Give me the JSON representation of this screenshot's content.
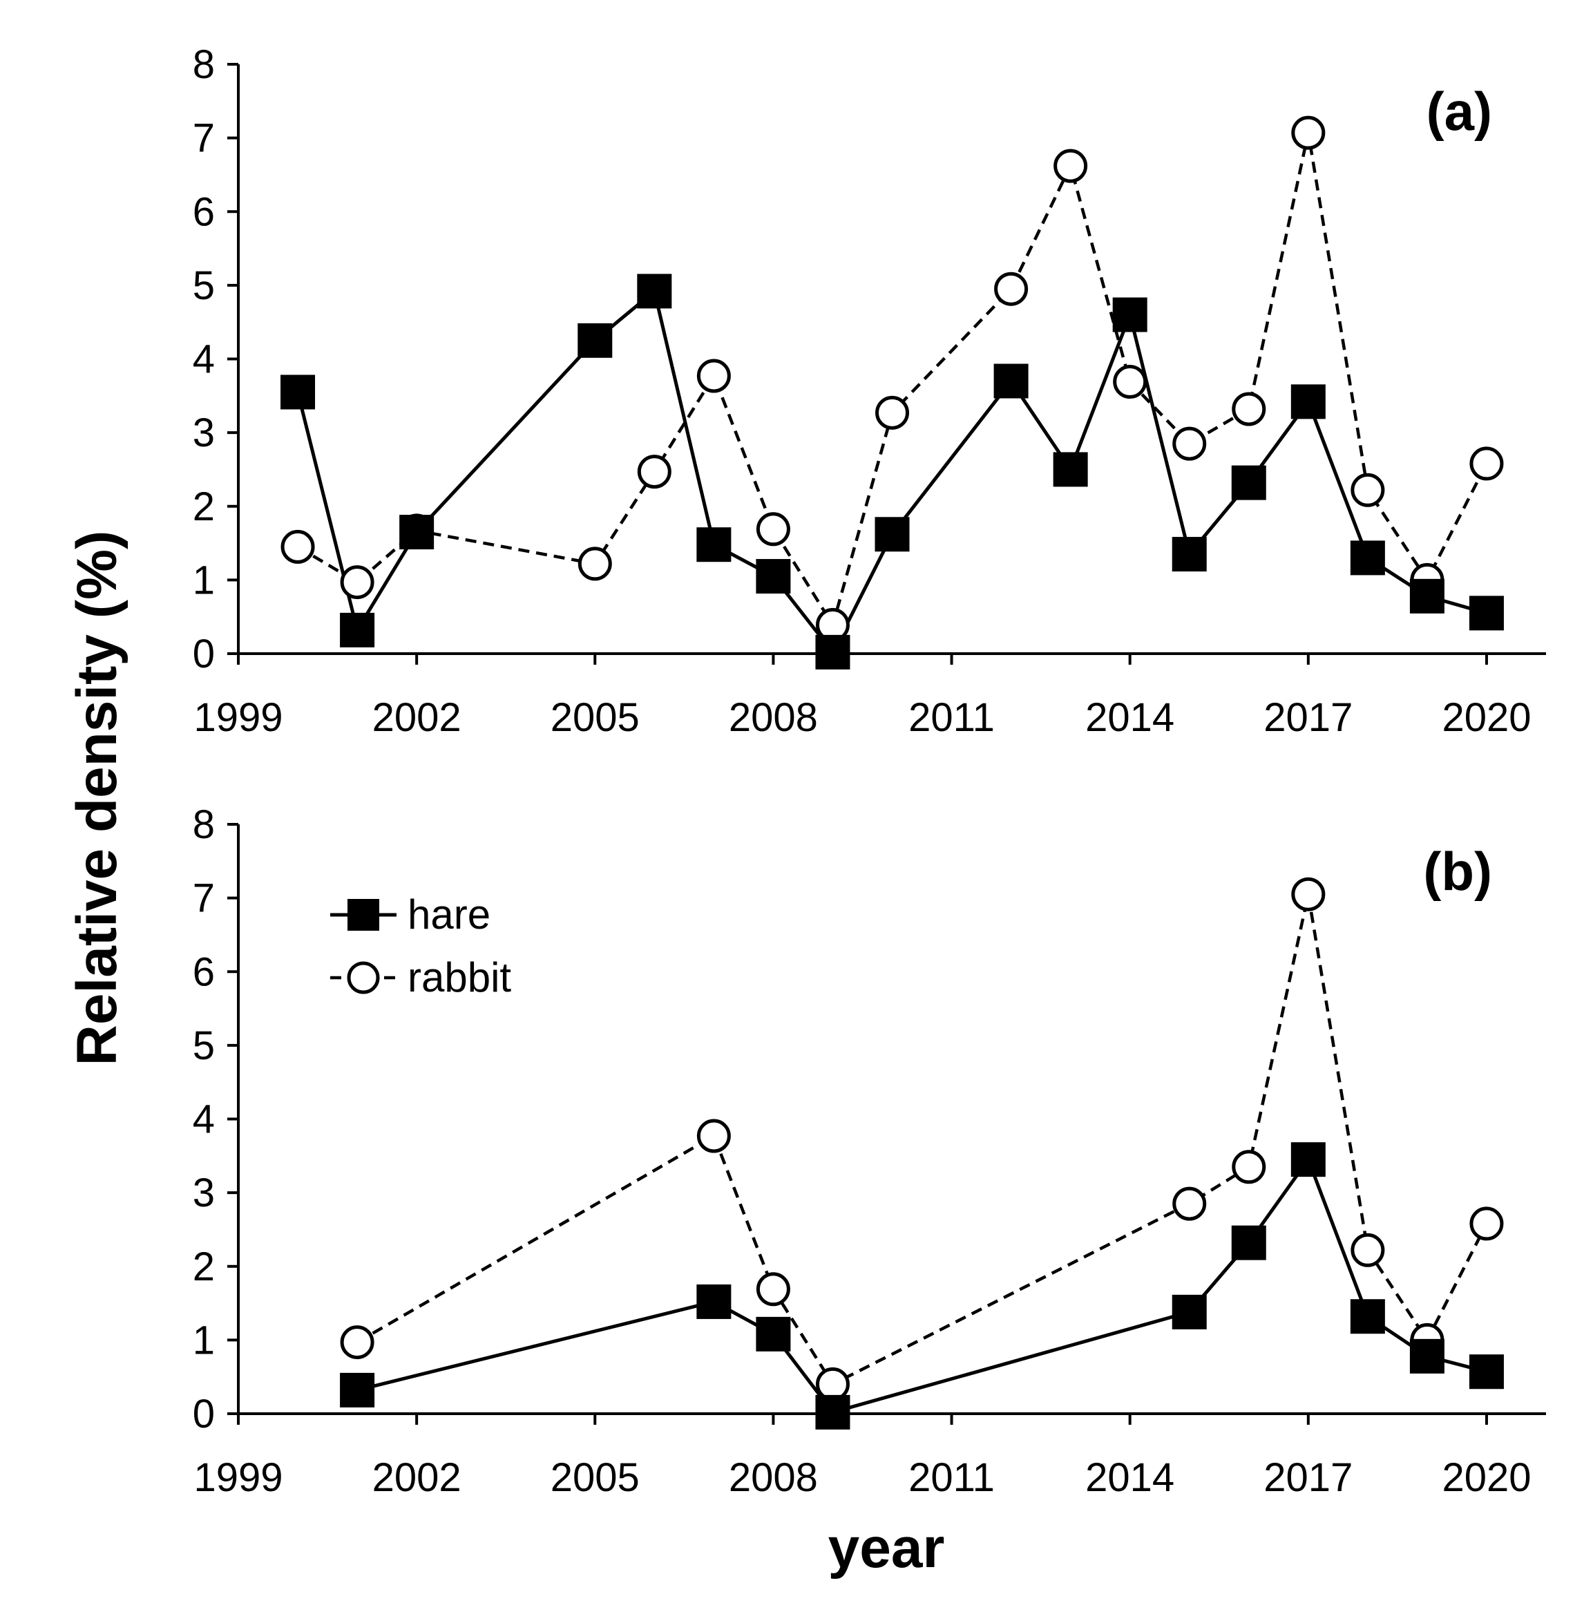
{
  "chart_data": [
    {
      "type": "line",
      "panel_label": "(a)",
      "xlim": [
        1999,
        2021
      ],
      "ylim": [
        0,
        8
      ],
      "xticks": [
        1999,
        2002,
        2005,
        2008,
        2011,
        2014,
        2017,
        2020
      ],
      "yticks": [
        0,
        1,
        2,
        3,
        4,
        5,
        6,
        7,
        8
      ],
      "series": [
        {
          "name": "hare",
          "marker": "square",
          "line": "solid",
          "x": [
            2000,
            2001,
            2002,
            2005,
            2006,
            2007,
            2008,
            2009,
            2010,
            2012,
            2013,
            2014,
            2015,
            2016,
            2017,
            2018,
            2019,
            2020
          ],
          "values": [
            3.55,
            0.32,
            1.65,
            4.25,
            4.92,
            1.48,
            1.05,
            0.02,
            1.62,
            3.7,
            2.5,
            4.6,
            1.35,
            2.32,
            3.42,
            1.3,
            0.78,
            0.55
          ]
        },
        {
          "name": "rabbit",
          "marker": "circle",
          "line": "dashed",
          "x": [
            2000,
            2001,
            2002,
            2005,
            2006,
            2007,
            2008,
            2009,
            2010,
            2012,
            2013,
            2014,
            2015,
            2016,
            2017,
            2018,
            2019,
            2020
          ],
          "values": [
            1.45,
            0.97,
            1.67,
            1.22,
            2.47,
            3.77,
            1.69,
            0.39,
            3.27,
            4.95,
            6.62,
            3.69,
            2.85,
            3.32,
            7.07,
            2.22,
            1.0,
            2.58
          ]
        }
      ]
    },
    {
      "type": "line",
      "panel_label": "(b)",
      "xlim": [
        1999,
        2021
      ],
      "ylim": [
        0,
        8
      ],
      "xticks": [
        1999,
        2002,
        2005,
        2008,
        2011,
        2014,
        2017,
        2020
      ],
      "yticks": [
        0,
        1,
        2,
        3,
        4,
        5,
        6,
        7,
        8
      ],
      "series": [
        {
          "name": "hare",
          "marker": "square",
          "line": "solid",
          "x": [
            2001,
            2007,
            2008,
            2009,
            2015,
            2016,
            2017,
            2018,
            2019,
            2020
          ],
          "values": [
            0.32,
            1.52,
            1.08,
            0.02,
            1.38,
            2.32,
            3.45,
            1.32,
            0.78,
            0.57
          ]
        },
        {
          "name": "rabbit",
          "marker": "circle",
          "line": "dashed",
          "x": [
            2001,
            2007,
            2008,
            2009,
            2015,
            2016,
            2017,
            2018,
            2019,
            2020
          ],
          "values": [
            0.97,
            3.77,
            1.69,
            0.4,
            2.85,
            3.35,
            7.05,
            2.22,
            1.0,
            2.58
          ]
        }
      ]
    }
  ],
  "ylabel": "Relative density  (%)",
  "xlabel": "year",
  "legend": {
    "placement": "top-left of panel (b)",
    "entries": [
      {
        "label": "hare",
        "marker": "square",
        "line": "solid"
      },
      {
        "label": "rabbit",
        "marker": "circle",
        "line": "dashed"
      }
    ]
  }
}
